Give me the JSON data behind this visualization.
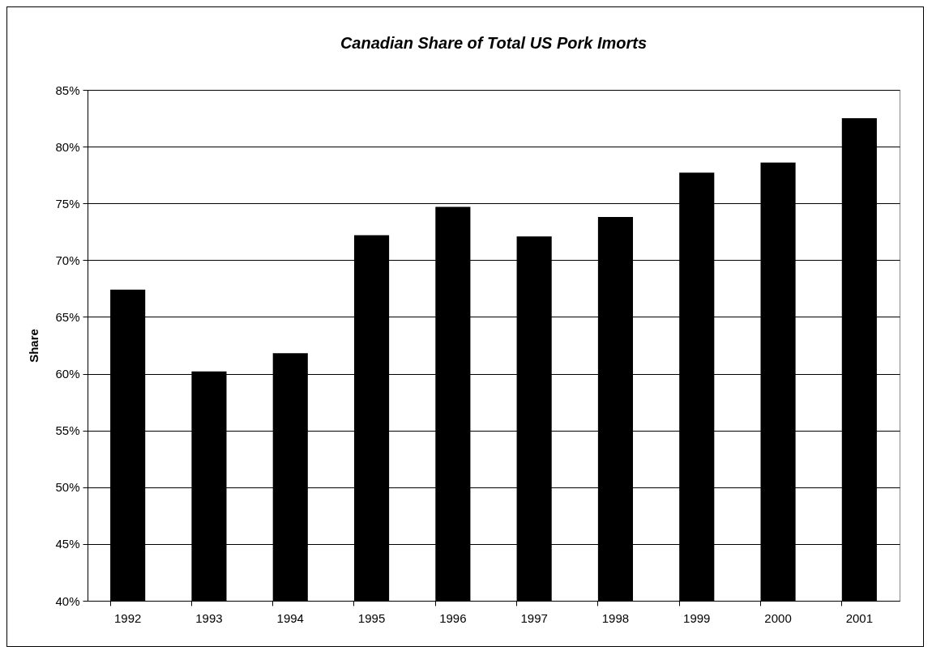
{
  "chart_data": {
    "type": "bar",
    "title": "Canadian Share of Total US Pork Imorts",
    "ylabel": "Share",
    "categories": [
      "1992",
      "1993",
      "1994",
      "1995",
      "1996",
      "1997",
      "1998",
      "1999",
      "2000",
      "2001"
    ],
    "values": [
      67.4,
      60.2,
      61.8,
      72.2,
      74.7,
      72.1,
      73.8,
      77.7,
      78.6,
      82.5
    ],
    "color": "#000000",
    "ylim": [
      40,
      85
    ],
    "yticks": [
      {
        "value": 40,
        "label": "40%"
      },
      {
        "value": 45,
        "label": "45%"
      },
      {
        "value": 50,
        "label": "50%"
      },
      {
        "value": 55,
        "label": "55%"
      },
      {
        "value": 60,
        "label": "60%"
      },
      {
        "value": 65,
        "label": "65%"
      },
      {
        "value": 70,
        "label": "70%"
      },
      {
        "value": 75,
        "label": "75%"
      },
      {
        "value": 80,
        "label": "80%"
      },
      {
        "value": 85,
        "label": "85%"
      }
    ],
    "grid": "y"
  }
}
